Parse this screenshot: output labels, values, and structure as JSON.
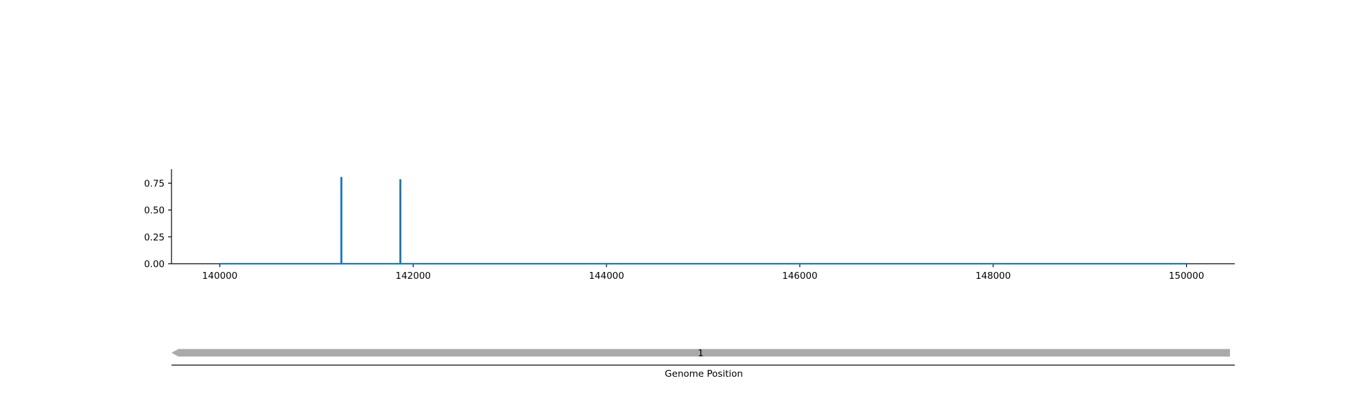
{
  "chart_data": [
    {
      "type": "line",
      "title": "",
      "xlabel": "",
      "ylabel": "",
      "xlim": [
        139500,
        150500
      ],
      "ylim": [
        0,
        0.88
      ],
      "x_ticks": [
        140000,
        142000,
        144000,
        146000,
        148000,
        150000
      ],
      "x_tick_labels": [
        "140000",
        "142000",
        "144000",
        "146000",
        "148000",
        "150000"
      ],
      "y_ticks": [
        0.0,
        0.25,
        0.5,
        0.75
      ],
      "y_tick_labels": [
        "0.00",
        "0.25",
        "0.50",
        "0.75"
      ],
      "grid": false,
      "color": "#1f77b4",
      "series": [
        {
          "x": [
            140000,
            141255,
            141255,
            141260,
            141260,
            141865,
            141865,
            141870,
            141870,
            150000
          ],
          "y": [
            0,
            0,
            0.8,
            0.8,
            0,
            0,
            0.78,
            0.78,
            0,
            0
          ]
        }
      ]
    },
    {
      "type": "gene-track",
      "xlabel": "Genome Position",
      "xlim": [
        139500,
        150500
      ],
      "features": [
        {
          "label": "1",
          "start": 139500,
          "end": 150450,
          "strand": "-",
          "color": "#aaaaaa"
        }
      ]
    }
  ]
}
